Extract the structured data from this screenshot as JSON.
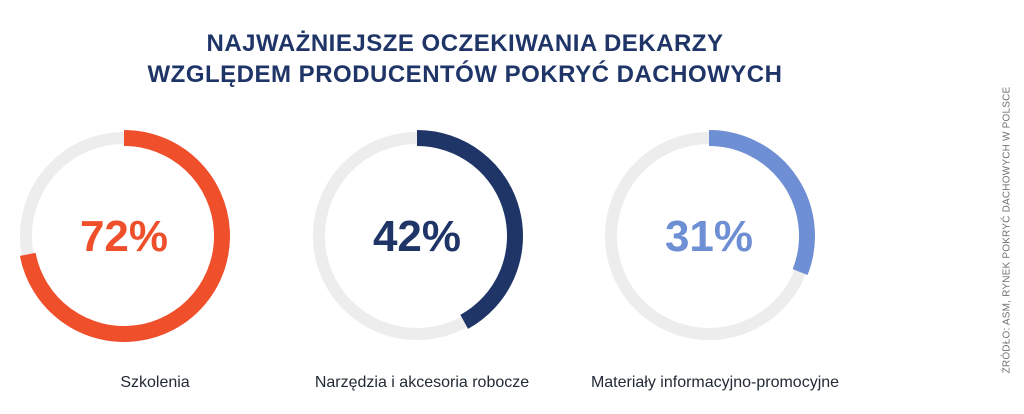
{
  "title_line1": "NAJWAŻNIEJSZE OCZEKIWANIA DEKARZY",
  "title_line2": "WZGLĘDEM PRODUCENTÓW POKRYĆ DACHOWYCH",
  "source": "ŹRÓDŁO: ASM, RYNEK POKRYĆ DACHOWYCH W POLSCE",
  "colors": {
    "title": "#1f3567",
    "track": "#ededed",
    "text": "#222a36"
  },
  "chart_data": {
    "type": "pie",
    "variant": "donut-progress",
    "unit": "%",
    "max": 100,
    "items": [
      {
        "label": "Szkolenia",
        "value": 72,
        "display": "72%",
        "color": "#ef4f2b"
      },
      {
        "label": "Narzędzia i akcesoria robocze",
        "value": 42,
        "display": "42%",
        "color": "#1f3567"
      },
      {
        "label": "Materiały informacyjno-promocyjne",
        "value": 31,
        "display": "31%",
        "color": "#6f8fd4"
      }
    ]
  }
}
